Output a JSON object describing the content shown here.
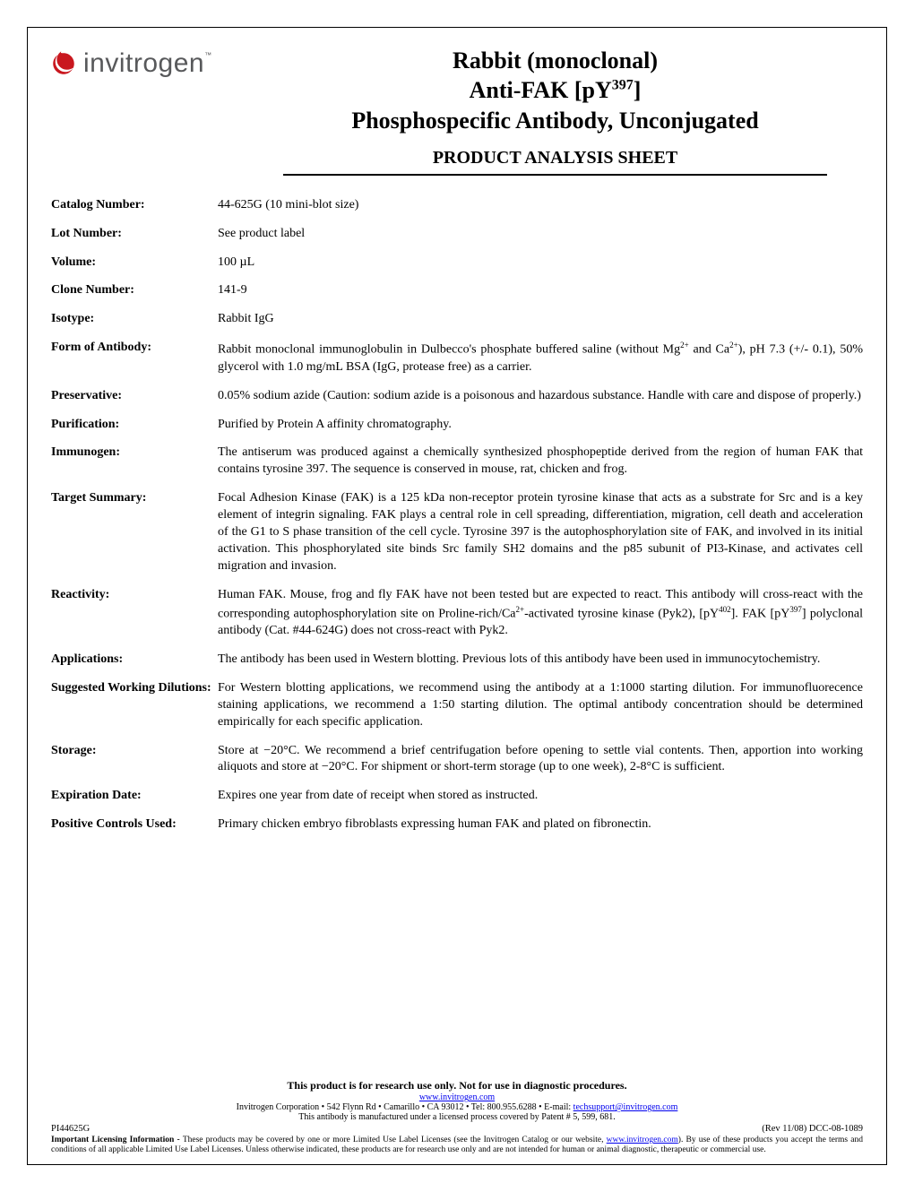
{
  "logo": {
    "brand": "invitrogen",
    "tm": "™"
  },
  "title": {
    "line1": "Rabbit (monoclonal)",
    "line2_pre": "Anti-FAK [pY",
    "line2_sup": "397",
    "line2_post": "]",
    "line3": "Phosphospecific Antibody, Unconjugated",
    "sheet": "PRODUCT ANALYSIS SHEET"
  },
  "fields": [
    {
      "label": "Catalog Number:",
      "value": "44-625G (10 mini-blot size)"
    },
    {
      "label": "Lot Number:",
      "value": "See product label"
    },
    {
      "label": "Volume:",
      "value": "100 µL"
    },
    {
      "label": "Clone Number:",
      "value": "141-9"
    },
    {
      "label": "Isotype:",
      "value": "Rabbit IgG"
    },
    {
      "label": "Form of Antibody:",
      "value_html": "Rabbit monoclonal immunoglobulin in Dulbecco's phosphate buffered saline (without Mg<span class=\"sup\">2+</span> and Ca<span class=\"sup\">2+</span>), pH 7.3 (+/- 0.1), 50% glycerol with 1.0 mg/mL BSA (IgG, protease free) as a carrier."
    },
    {
      "label": "Preservative:",
      "value": "0.05% sodium azide (Caution: sodium azide is a poisonous and hazardous substance. Handle with care and dispose of properly.)"
    },
    {
      "label": "Purification:",
      "value": "Purified by Protein A affinity chromatography."
    },
    {
      "label": "Immunogen:",
      "value": "The antiserum was produced against a chemically synthesized phosphopeptide derived from the region of human FAK that contains tyrosine 397. The sequence is conserved in mouse, rat, chicken and frog."
    },
    {
      "label": "Target Summary:",
      "value": "Focal Adhesion Kinase (FAK) is a 125 kDa non-receptor protein tyrosine kinase that acts as a substrate for Src and is a key element of integrin signaling. FAK plays a central role in cell spreading, differentiation, migration, cell death and acceleration of the G1 to S phase transition of the cell cycle. Tyrosine 397 is the autophosphorylation site of FAK, and involved in its initial activation. This phosphorylated site binds Src family SH2 domains and the p85 subunit of PI3-Kinase, and activates cell migration and invasion."
    },
    {
      "label": "Reactivity:",
      "value_html": "Human FAK.  Mouse, frog and fly FAK have not been tested but are expected to react.  This antibody will cross-react with the corresponding autophosphorylation site on Proline-rich/Ca<span class=\"sup\">2+</span>-activated tyrosine kinase (Pyk2), [pY<span class=\"sup\">402</span>].   FAK [pY<span class=\"sup\">397</span>] polyclonal antibody (Cat. #44-624G) does not cross-react with Pyk2."
    },
    {
      "label": "Applications:",
      "value": "The antibody has been used in Western blotting.  Previous lots of this antibody have been used in immunocytochemistry."
    },
    {
      "label": "Suggested Working Dilutions:",
      "value": "For Western blotting applications, we recommend using the antibody at a 1:1000 starting dilution. For immunofluorecence staining applications, we recommend a 1:50 starting dilution. The optimal antibody concentration should be determined empirically for each specific application."
    },
    {
      "label": "Storage:",
      "value_html": "Store at −20°C. We recommend a brief centrifugation before opening to settle vial contents. Then, apportion into working aliquots and store at −20°C. For shipment or short-term storage (up to one week), 2-8°C is sufficient."
    },
    {
      "label": "Expiration Date:",
      "value": "Expires one year from date of receipt when stored as instructed."
    },
    {
      "label": "Positive Controls Used:",
      "value": "Primary chicken embryo fibroblasts expressing human FAK and plated on fibronectin."
    }
  ],
  "footer": {
    "research_use": "This product is for research use only. Not for use in diagnostic procedures.",
    "website_url": "www.invitrogen.com",
    "corp_line": "Invitrogen Corporation • 542 Flynn Rd • Camarillo • CA 93012 • Tel: 800.955.6288 • E-mail: ",
    "email": "techsupport@invitrogen.com",
    "patent_line": "This antibody is manufactured under a licensed process covered by Patent # 5, 599, 681.",
    "pi": "PI44625G",
    "rev": "(Rev 11/08) DCC-08-1089",
    "legal_pre": "Important Licensing Information - ",
    "legal_body": "These products may be covered by one or more Limited Use Label Licenses (see the Invitrogen Catalog or our website, ",
    "legal_post": "). By use of these products you accept the terms and conditions of all applicable Limited Use Label Licenses.  Unless otherwise indicated, these products are for research use only and are not intended for human or animal diagnostic, therapeutic or commercial use."
  }
}
